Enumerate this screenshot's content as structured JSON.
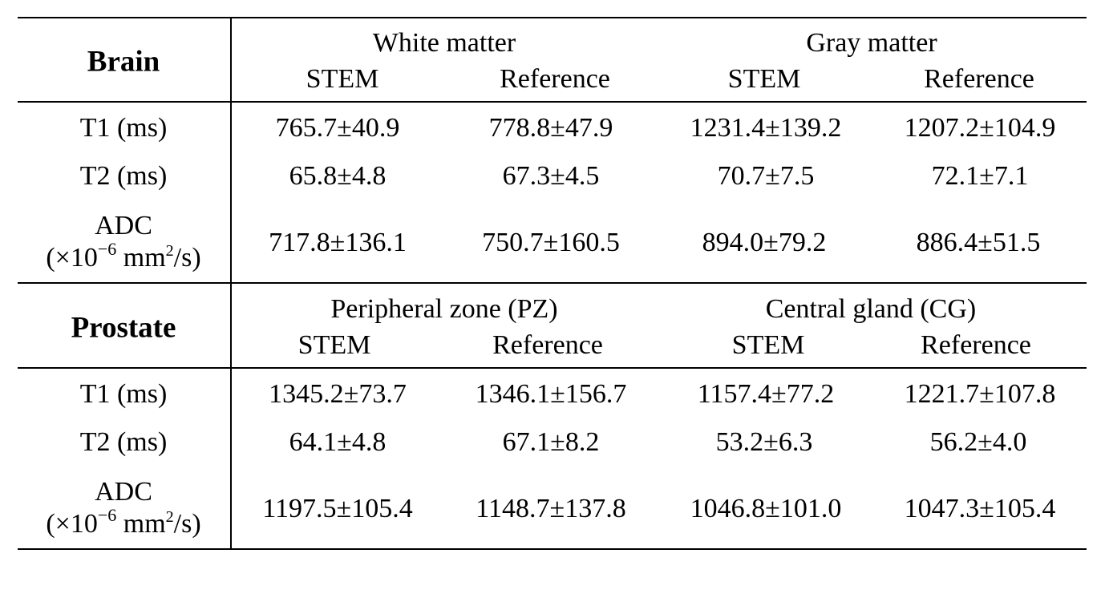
{
  "table": {
    "sections": [
      {
        "title": "Brain",
        "group1": "White matter",
        "group2": "Gray matter",
        "subheaders": [
          "STEM",
          "Reference",
          "STEM",
          "Reference"
        ],
        "rows": [
          {
            "label": "T1 (ms)",
            "values": [
              "765.7±40.9",
              "778.8±47.9",
              "1231.4±139.2",
              "1207.2±104.9"
            ]
          },
          {
            "label": "T2 (ms)",
            "values": [
              "65.8±4.8",
              "67.3±4.5",
              "70.7±7.5",
              "72.1±7.1"
            ]
          },
          {
            "label_line1": "ADC",
            "label_open": "(×10",
            "label_exp": "−6",
            "label_unit_a": " mm",
            "label_unit_sup": "2",
            "label_unit_b": "/s)",
            "values": [
              "717.8±136.1",
              "750.7±160.5",
              "894.0±79.2",
              "886.4±51.5"
            ]
          }
        ]
      },
      {
        "title": "Prostate",
        "group1": "Peripheral zone (PZ)",
        "group2": "Central gland (CG)",
        "subheaders": [
          "STEM",
          "Reference",
          "STEM",
          "Reference"
        ],
        "rows": [
          {
            "label": "T1 (ms)",
            "values": [
              "1345.2±73.7",
              "1346.1±156.7",
              "1157.4±77.2",
              "1221.7±107.8"
            ]
          },
          {
            "label": "T2 (ms)",
            "values": [
              "64.1±4.8",
              "67.1±8.2",
              "53.2±6.3",
              "56.2±4.0"
            ]
          },
          {
            "label_line1": "ADC",
            "label_open": "(×10",
            "label_exp": "−6",
            "label_unit_a": " mm",
            "label_unit_sup": "2",
            "label_unit_b": "/s)",
            "values": [
              "1197.5±105.4",
              "1148.7±137.8",
              "1046.8±101.0",
              "1047.3±105.4"
            ]
          }
        ]
      }
    ]
  }
}
